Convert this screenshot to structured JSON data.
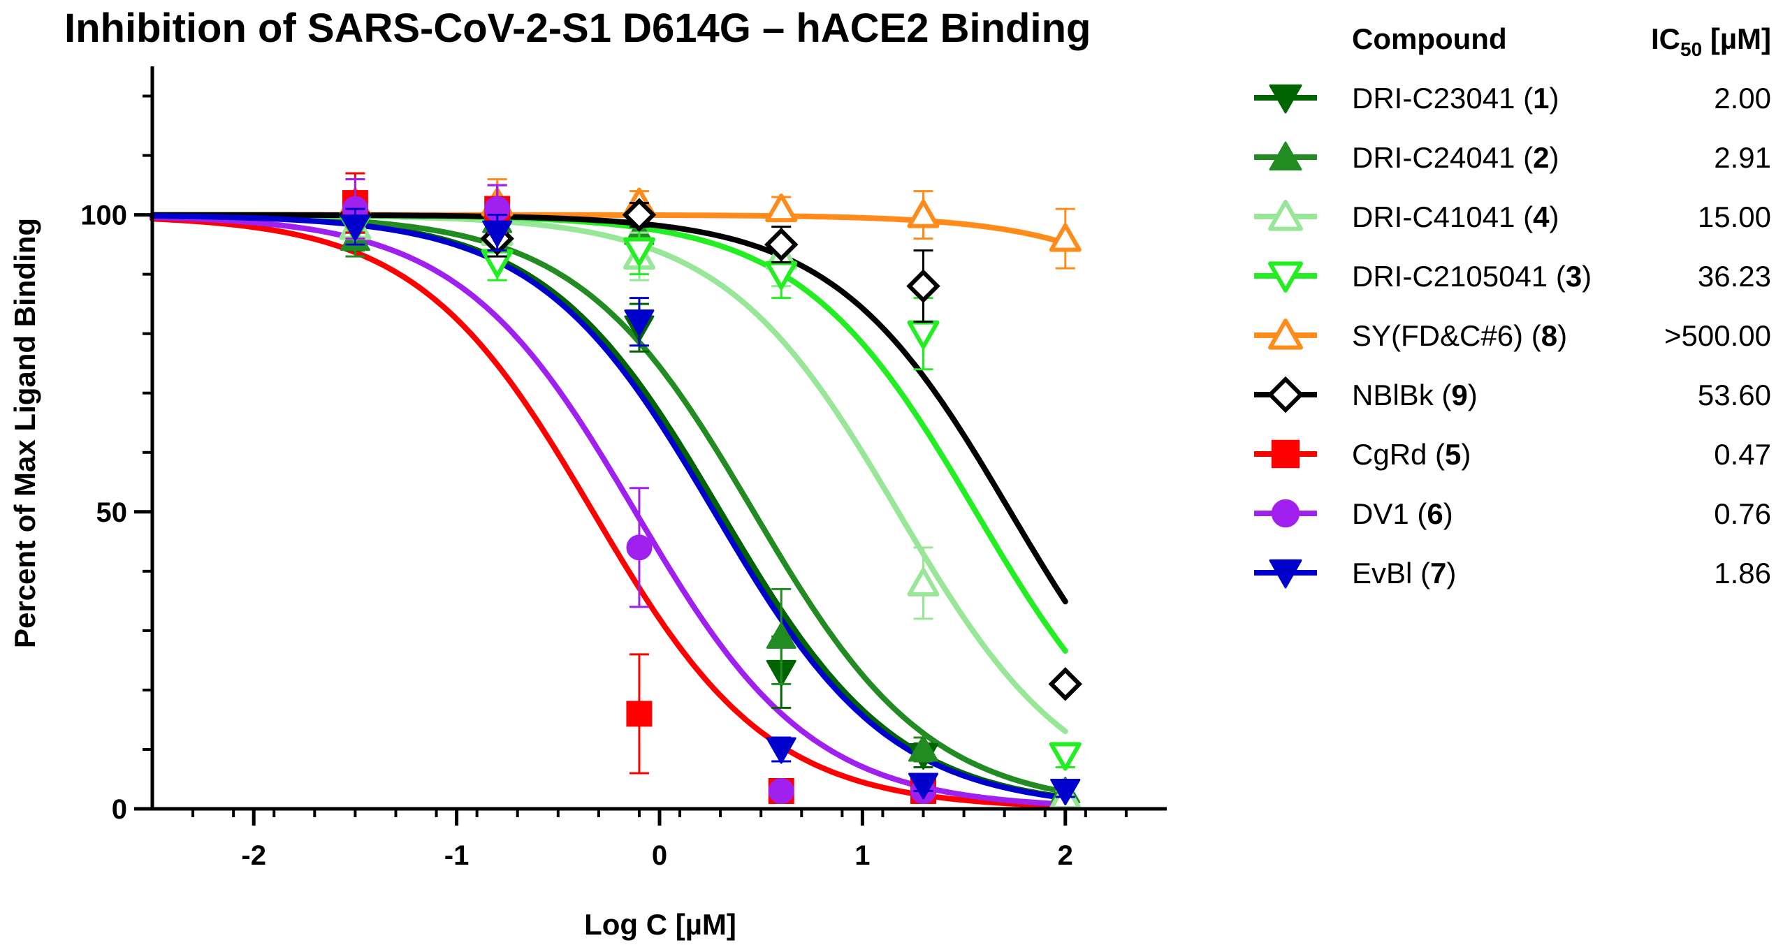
{
  "chart_data": {
    "type": "scatter",
    "title": "Inhibition of SARS-CoV-2-S1 D614G – hACE2 Binding",
    "xlabel": "Log C [µM]",
    "ylabel": "Percent of Max Ligand Binding",
    "xlim": [
      -2.5,
      2.5
    ],
    "ylim": [
      0,
      125
    ],
    "x_ticks": [
      -2,
      -1,
      0,
      1,
      2
    ],
    "x_tick_labels": [
      "-2",
      "-1",
      "0",
      "1",
      "2"
    ],
    "y_ticks": [
      0,
      50,
      100
    ],
    "y_tick_labels": [
      "0",
      "50",
      "100"
    ],
    "grid": false,
    "legend_position": "right",
    "legend_headers": {
      "compound": "Compound",
      "ic50": "IC50 [µM]"
    },
    "series": [
      {
        "name": "DRI-C23041",
        "number": "1",
        "ic50_label": "2.00",
        "logIC50": 0.301,
        "hill": 1.0,
        "color": "#006400",
        "marker": "triangle-down",
        "filled": true,
        "points": [
          {
            "x": -1.5,
            "y": 98,
            "err": 4
          },
          {
            "x": -0.8,
            "y": 98,
            "err": 3
          },
          {
            "x": -0.1,
            "y": 81,
            "err": 4
          },
          {
            "x": 0.6,
            "y": 23,
            "err": 6
          },
          {
            "x": 1.3,
            "y": 9,
            "err": 2
          },
          {
            "x": 2.0,
            "y": 3,
            "err": 1
          }
        ]
      },
      {
        "name": "DRI-C24041",
        "number": "2",
        "ic50_label": "2.91",
        "logIC50": 0.464,
        "hill": 1.0,
        "color": "#228B22",
        "marker": "triangle-up",
        "filled": true,
        "points": [
          {
            "x": -1.5,
            "y": 96,
            "err": 3
          },
          {
            "x": -0.8,
            "y": 99,
            "err": 3
          },
          {
            "x": -0.1,
            "y": 97,
            "err": 3
          },
          {
            "x": 0.6,
            "y": 29,
            "err": 8
          },
          {
            "x": 1.3,
            "y": 10,
            "err": 2
          },
          {
            "x": 2.0,
            "y": 3,
            "err": 1
          }
        ]
      },
      {
        "name": "DRI-C41041",
        "number": "4",
        "ic50_label": "15.00",
        "logIC50": 1.176,
        "hill": 1.0,
        "color": "#98E698",
        "marker": "triangle-up",
        "filled": false,
        "points": [
          {
            "x": -1.5,
            "y": 98,
            "err": 3
          },
          {
            "x": -0.8,
            "y": 97,
            "err": 3
          },
          {
            "x": -0.1,
            "y": 93,
            "err": 4
          },
          {
            "x": 0.6,
            "y": 93,
            "err": 5
          },
          {
            "x": 1.3,
            "y": 38,
            "err": 6
          },
          {
            "x": 2.0,
            "y": 2,
            "err": 1
          }
        ]
      },
      {
        "name": "DRI-C2105041",
        "number": "3",
        "ic50_label": "36.23",
        "logIC50": 1.559,
        "hill": 1.0,
        "color": "#22EE22",
        "marker": "triangle-down",
        "filled": false,
        "points": [
          {
            "x": -1.5,
            "y": 98,
            "err": 3
          },
          {
            "x": -0.8,
            "y": 92,
            "err": 3
          },
          {
            "x": -0.1,
            "y": 94,
            "err": 4
          },
          {
            "x": 0.6,
            "y": 90,
            "err": 4
          },
          {
            "x": 1.3,
            "y": 80,
            "err": 6
          },
          {
            "x": 2.0,
            "y": 9,
            "err": 2
          }
        ]
      },
      {
        "name": "SY(FD&C#6)",
        "number": "8",
        "ic50_label": ">500.00",
        "logIC50": 3.3,
        "hill": 1.0,
        "color": "#FF8C1A",
        "marker": "triangle-up",
        "filled": false,
        "points": [
          {
            "x": -1.5,
            "y": 102,
            "err": 4
          },
          {
            "x": -0.8,
            "y": 102,
            "err": 4
          },
          {
            "x": -0.1,
            "y": 102,
            "err": 2
          },
          {
            "x": 0.6,
            "y": 101,
            "err": 2
          },
          {
            "x": 1.3,
            "y": 100,
            "err": 4
          },
          {
            "x": 2.0,
            "y": 96,
            "err": 5
          }
        ]
      },
      {
        "name": "NBlBk",
        "number": "9",
        "ic50_label": "53.60",
        "logIC50": 1.729,
        "hill": 1.0,
        "color": "#000000",
        "marker": "diamond",
        "filled": false,
        "points": [
          {
            "x": -1.5,
            "y": 100,
            "err": 3
          },
          {
            "x": -0.8,
            "y": 96,
            "err": 3
          },
          {
            "x": -0.1,
            "y": 100,
            "err": 2
          },
          {
            "x": 0.6,
            "y": 95,
            "err": 3
          },
          {
            "x": 1.3,
            "y": 88,
            "err": 6
          },
          {
            "x": 2.0,
            "y": 21,
            "err": 0
          }
        ]
      },
      {
        "name": "CgRd",
        "number": "5",
        "ic50_label": "0.47",
        "logIC50": -0.328,
        "hill": 1.0,
        "color": "#FF0000",
        "marker": "square",
        "filled": true,
        "points": [
          {
            "x": -1.5,
            "y": 102,
            "err": 5
          },
          {
            "x": -0.8,
            "y": 101,
            "err": 4
          },
          {
            "x": -0.1,
            "y": 16,
            "err": 10
          },
          {
            "x": 0.6,
            "y": 3,
            "err": 0
          },
          {
            "x": 1.3,
            "y": 3,
            "err": 0
          }
        ]
      },
      {
        "name": "DV1",
        "number": "6",
        "ic50_label": "0.76",
        "logIC50": -0.119,
        "hill": 1.0,
        "color": "#A020F0",
        "marker": "circle",
        "filled": true,
        "points": [
          {
            "x": -1.5,
            "y": 101,
            "err": 5
          },
          {
            "x": -0.8,
            "y": 101,
            "err": 4
          },
          {
            "x": -0.1,
            "y": 44,
            "err": 10
          },
          {
            "x": 0.6,
            "y": 3,
            "err": 0
          },
          {
            "x": 1.3,
            "y": 3,
            "err": 0
          }
        ]
      },
      {
        "name": "EvBl",
        "number": "7",
        "ic50_label": "1.86",
        "logIC50": 0.27,
        "hill": 1.0,
        "color": "#0000CD",
        "marker": "triangle-down",
        "filled": true,
        "points": [
          {
            "x": -1.5,
            "y": 98,
            "err": 3
          },
          {
            "x": -0.8,
            "y": 97,
            "err": 3
          },
          {
            "x": -0.1,
            "y": 82,
            "err": 4
          },
          {
            "x": 0.6,
            "y": 10,
            "err": 2
          },
          {
            "x": 1.3,
            "y": 4,
            "err": 1
          },
          {
            "x": 2.0,
            "y": 3,
            "err": 1
          }
        ]
      }
    ]
  }
}
